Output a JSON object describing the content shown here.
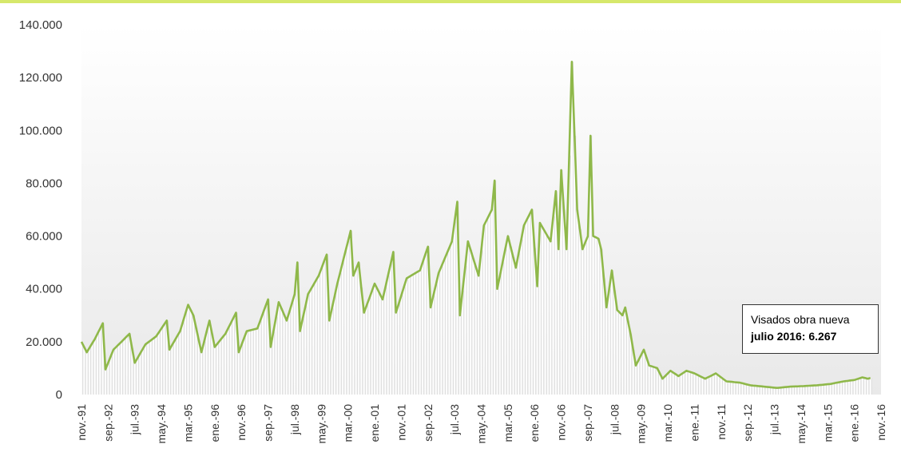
{
  "chart_data": {
    "type": "line",
    "title": "",
    "xlabel": "",
    "ylabel": "",
    "ylim": [
      0,
      140000
    ],
    "y_ticks": [
      {
        "value": 0,
        "label": "0"
      },
      {
        "value": 20000,
        "label": "20.000"
      },
      {
        "value": 40000,
        "label": "40.000"
      },
      {
        "value": 60000,
        "label": "60.000"
      },
      {
        "value": 80000,
        "label": "80.000"
      },
      {
        "value": 100000,
        "label": "100.000"
      },
      {
        "value": 120000,
        "label": "120.000"
      },
      {
        "value": 140000,
        "label": "140.000"
      }
    ],
    "x_start": "1991-11",
    "x_end": "2016-11",
    "x_ticks": [
      "nov.-91",
      "sep.-92",
      "jul.-93",
      "may.-94",
      "mar.-95",
      "ene.-96",
      "nov.-96",
      "sep.-97",
      "jul.-98",
      "may.-99",
      "mar.-00",
      "ene.-01",
      "nov.-01",
      "sep.-02",
      "jul.-03",
      "may.-04",
      "mar.-05",
      "ene.-06",
      "nov.-06",
      "sep.-07",
      "jul.-08",
      "may.-09",
      "mar.-10",
      "ene.-11",
      "nov.-11",
      "sep.-12",
      "jul.-13",
      "may.-14",
      "mar.-15",
      "ene.-16",
      "nov.-16"
    ],
    "grid": false,
    "series": [
      {
        "name": "Visados obra nueva",
        "color": "#8fb84a",
        "anchors": [
          [
            "1991-11",
            20000
          ],
          [
            "1992-01",
            16000
          ],
          [
            "1992-04",
            21000
          ],
          [
            "1992-07",
            27000
          ],
          [
            "1992-08",
            9500
          ],
          [
            "1992-11",
            17000
          ],
          [
            "1993-03",
            21000
          ],
          [
            "1993-05",
            23000
          ],
          [
            "1993-07",
            12000
          ],
          [
            "1993-11",
            19000
          ],
          [
            "1994-03",
            22000
          ],
          [
            "1994-07",
            28000
          ],
          [
            "1994-08",
            17000
          ],
          [
            "1994-12",
            24000
          ],
          [
            "1995-03",
            34000
          ],
          [
            "1995-05",
            30000
          ],
          [
            "1995-08",
            16000
          ],
          [
            "1995-11",
            28000
          ],
          [
            "1996-01",
            18000
          ],
          [
            "1996-05",
            23000
          ],
          [
            "1996-09",
            31000
          ],
          [
            "1996-10",
            16000
          ],
          [
            "1997-01",
            24000
          ],
          [
            "1997-05",
            25000
          ],
          [
            "1997-09",
            36000
          ],
          [
            "1997-10",
            18000
          ],
          [
            "1998-01",
            35000
          ],
          [
            "1998-04",
            28000
          ],
          [
            "1998-07",
            38000
          ],
          [
            "1998-08",
            50000
          ],
          [
            "1998-09",
            24000
          ],
          [
            "1998-12",
            38000
          ],
          [
            "1999-04",
            45000
          ],
          [
            "1999-07",
            53000
          ],
          [
            "1999-08",
            28000
          ],
          [
            "1999-11",
            42000
          ],
          [
            "2000-03",
            58000
          ],
          [
            "2000-04",
            62000
          ],
          [
            "2000-05",
            45000
          ],
          [
            "2000-07",
            50000
          ],
          [
            "2000-09",
            31000
          ],
          [
            "2001-01",
            42000
          ],
          [
            "2001-04",
            36000
          ],
          [
            "2001-08",
            54000
          ],
          [
            "2001-09",
            31000
          ],
          [
            "2002-01",
            44000
          ],
          [
            "2002-06",
            47000
          ],
          [
            "2002-09",
            56000
          ],
          [
            "2002-10",
            33000
          ],
          [
            "2003-01",
            46000
          ],
          [
            "2003-06",
            58000
          ],
          [
            "2003-08",
            73000
          ],
          [
            "2003-09",
            30000
          ],
          [
            "2003-12",
            58000
          ],
          [
            "2004-04",
            45000
          ],
          [
            "2004-06",
            64000
          ],
          [
            "2004-09",
            70000
          ],
          [
            "2004-10",
            81000
          ],
          [
            "2004-11",
            40000
          ],
          [
            "2005-03",
            60000
          ],
          [
            "2005-06",
            48000
          ],
          [
            "2005-09",
            64000
          ],
          [
            "2005-12",
            70000
          ],
          [
            "2006-02",
            41000
          ],
          [
            "2006-03",
            65000
          ],
          [
            "2006-07",
            58000
          ],
          [
            "2006-09",
            77000
          ],
          [
            "2006-10",
            55000
          ],
          [
            "2006-11",
            85000
          ],
          [
            "2007-01",
            55000
          ],
          [
            "2007-03",
            126000
          ],
          [
            "2007-05",
            70000
          ],
          [
            "2007-07",
            55000
          ],
          [
            "2007-09",
            60000
          ],
          [
            "2007-10",
            98000
          ],
          [
            "2007-11",
            60000
          ],
          [
            "2008-01",
            59000
          ],
          [
            "2008-02",
            55000
          ],
          [
            "2008-04",
            33000
          ],
          [
            "2008-06",
            47000
          ],
          [
            "2008-08",
            32000
          ],
          [
            "2008-10",
            30000
          ],
          [
            "2008-11",
            33000
          ],
          [
            "2009-01",
            23000
          ],
          [
            "2009-03",
            11000
          ],
          [
            "2009-06",
            17000
          ],
          [
            "2009-08",
            11000
          ],
          [
            "2009-11",
            10000
          ],
          [
            "2010-01",
            6000
          ],
          [
            "2010-04",
            9000
          ],
          [
            "2010-07",
            7000
          ],
          [
            "2010-10",
            9000
          ],
          [
            "2011-01",
            8000
          ],
          [
            "2011-05",
            6000
          ],
          [
            "2011-09",
            8000
          ],
          [
            "2012-01",
            5000
          ],
          [
            "2012-06",
            4500
          ],
          [
            "2012-10",
            3500
          ],
          [
            "2013-03",
            3000
          ],
          [
            "2013-08",
            2500
          ],
          [
            "2014-01",
            3000
          ],
          [
            "2014-06",
            3200
          ],
          [
            "2014-11",
            3500
          ],
          [
            "2015-04",
            4000
          ],
          [
            "2015-09",
            5000
          ],
          [
            "2016-01",
            5500
          ],
          [
            "2016-04",
            6500
          ],
          [
            "2016-06",
            6000
          ],
          [
            "2016-07",
            6267
          ]
        ]
      }
    ],
    "annotation": {
      "line1": "Visados obra nueva",
      "line2": "julio 2016: 6.267"
    }
  }
}
